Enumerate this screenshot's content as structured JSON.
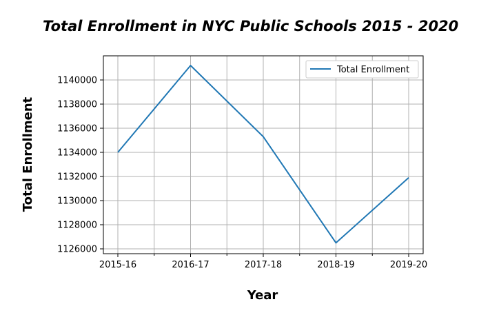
{
  "chart_data": {
    "type": "line",
    "title": "Total Enrollment in NYC Public Schools 2015 - 2020",
    "xlabel": "Year",
    "ylabel": "Total Enrollment",
    "categories": [
      "2015-16",
      "2016-17",
      "2017-18",
      "2018-19",
      "2019-20"
    ],
    "series": [
      {
        "name": "Total Enrollment",
        "values": [
          1134000,
          1141200,
          1135300,
          1126500,
          1131900
        ],
        "color": "#1f77b4"
      }
    ],
    "ylim": [
      1125600,
      1142000
    ],
    "yticks": [
      1126000,
      1128000,
      1130000,
      1132000,
      1134000,
      1136000,
      1138000,
      1140000
    ],
    "ytick_labels": [
      "1126000",
      "1128000",
      "1130000",
      "1132000",
      "1134000",
      "1136000",
      "1138000",
      "1140000"
    ],
    "x_minor_ticks": [
      0.5,
      1.5,
      2.5,
      3.5
    ],
    "grid": true,
    "legend": "top-right"
  }
}
